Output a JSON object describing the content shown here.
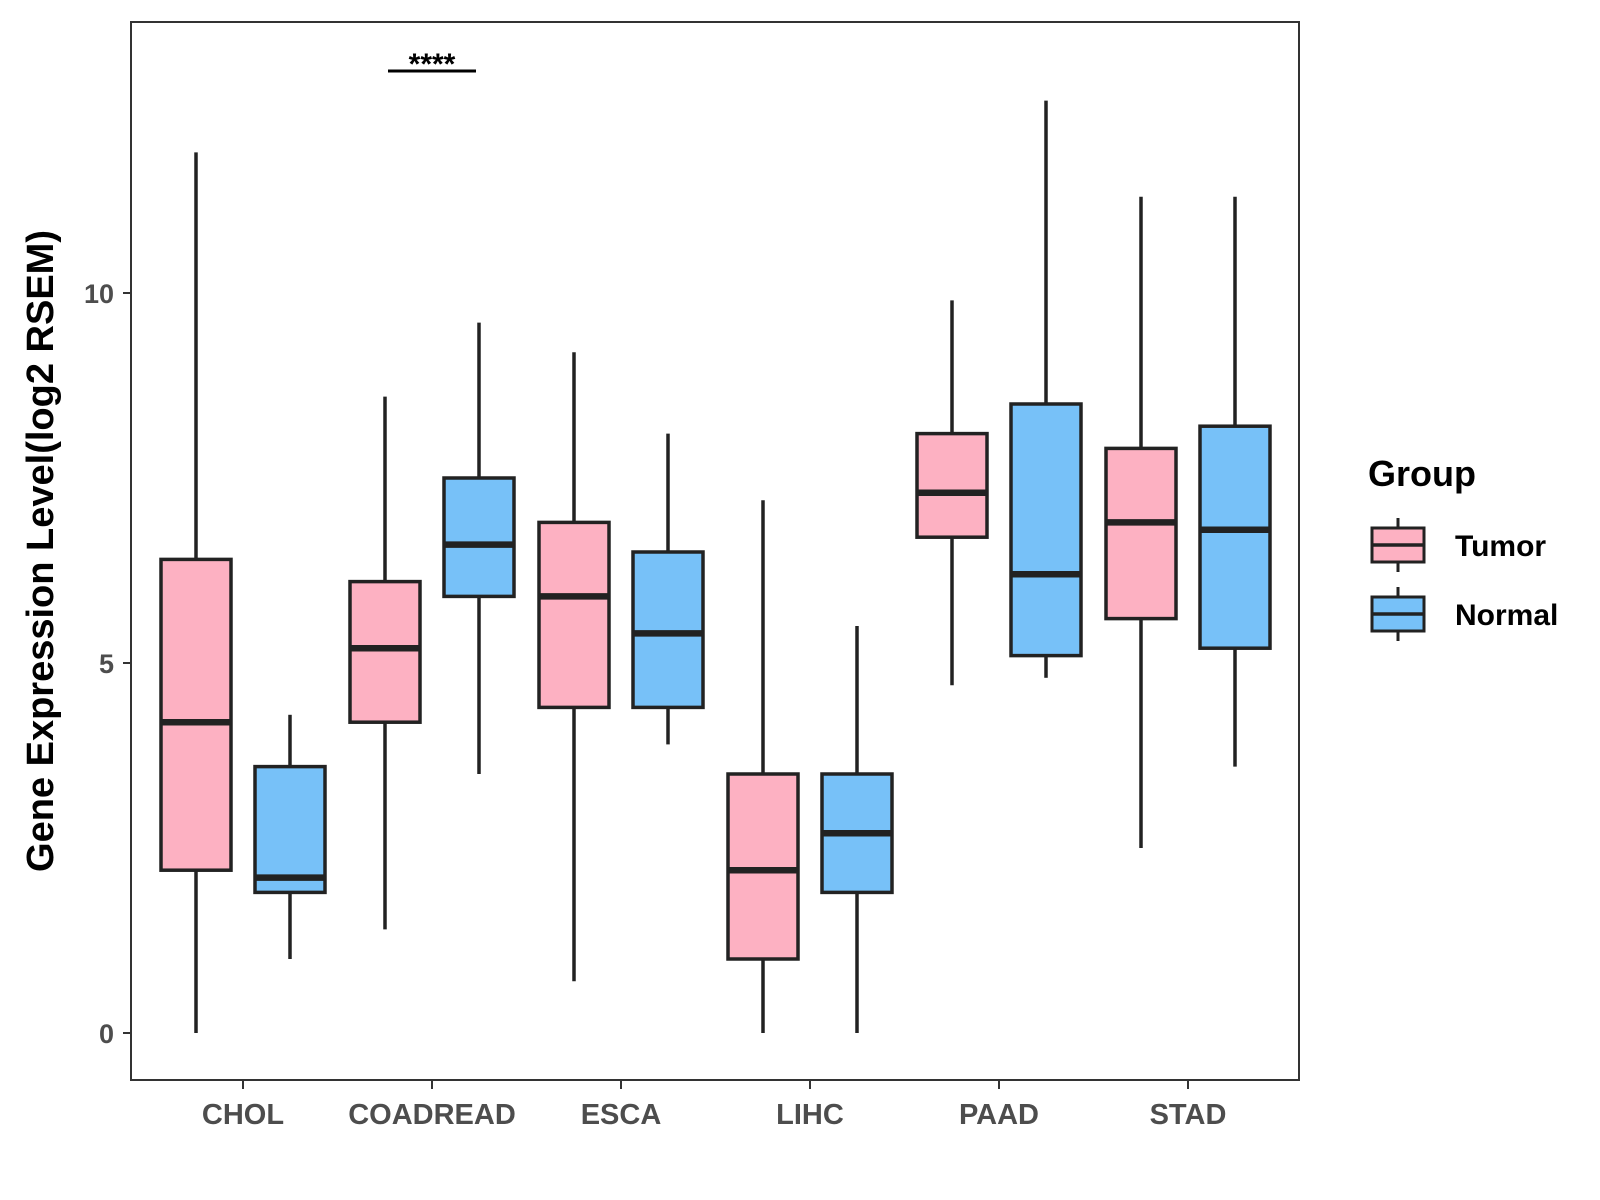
{
  "chart_data": {
    "type": "box",
    "title": "",
    "xlabel": "",
    "ylabel": "Gene Expression Level(log2 RSEM)",
    "ylim": [
      -0.64,
      13.66
    ],
    "yticks": [
      0,
      5,
      10
    ],
    "ytick_labels": [
      "0",
      "5",
      "10"
    ],
    "grid": false,
    "categories": [
      "CHOL",
      "COADREAD",
      "ESCA",
      "LIHC",
      "PAAD",
      "STAD"
    ],
    "legend": {
      "title": "Group",
      "position": "right",
      "entries": [
        {
          "name": "Tumor",
          "color": "#FDB1C2"
        },
        {
          "name": "Normal",
          "color": "#77C1F8"
        }
      ]
    },
    "series": [
      {
        "name": "Tumor",
        "color": "#FDB1C2",
        "boxes": [
          {
            "category": "CHOL",
            "min": 0.0,
            "q1": 2.2,
            "median": 4.2,
            "q3": 6.4,
            "max": 11.9
          },
          {
            "category": "COADREAD",
            "min": 1.4,
            "q1": 4.2,
            "median": 5.2,
            "q3": 6.1,
            "max": 8.6
          },
          {
            "category": "ESCA",
            "min": 0.7,
            "q1": 4.4,
            "median": 5.9,
            "q3": 6.9,
            "max": 9.2
          },
          {
            "category": "LIHC",
            "min": 0.0,
            "q1": 1.0,
            "median": 2.2,
            "q3": 3.5,
            "max": 7.2
          },
          {
            "category": "PAAD",
            "min": 4.7,
            "q1": 6.7,
            "median": 7.3,
            "q3": 8.1,
            "max": 9.9
          },
          {
            "category": "STAD",
            "min": 2.5,
            "q1": 5.6,
            "median": 6.9,
            "q3": 7.9,
            "max": 11.3
          }
        ]
      },
      {
        "name": "Normal",
        "color": "#77C1F8",
        "boxes": [
          {
            "category": "CHOL",
            "min": 1.0,
            "q1": 1.9,
            "median": 2.1,
            "q3": 3.6,
            "max": 4.3
          },
          {
            "category": "COADREAD",
            "min": 3.5,
            "q1": 5.9,
            "median": 6.6,
            "q3": 7.5,
            "max": 9.6
          },
          {
            "category": "ESCA",
            "min": 3.9,
            "q1": 4.4,
            "median": 5.4,
            "q3": 6.5,
            "max": 8.1
          },
          {
            "category": "LIHC",
            "min": 0.0,
            "q1": 1.9,
            "median": 2.7,
            "q3": 3.5,
            "max": 5.5
          },
          {
            "category": "PAAD",
            "min": 4.8,
            "q1": 5.1,
            "median": 6.2,
            "q3": 8.5,
            "max": 12.6
          },
          {
            "category": "STAD",
            "min": 3.6,
            "q1": 5.2,
            "median": 6.8,
            "q3": 8.2,
            "max": 11.3
          }
        ]
      }
    ],
    "annotations": [
      {
        "category": "COADREAD",
        "label": "****",
        "y": 13.0
      }
    ]
  }
}
